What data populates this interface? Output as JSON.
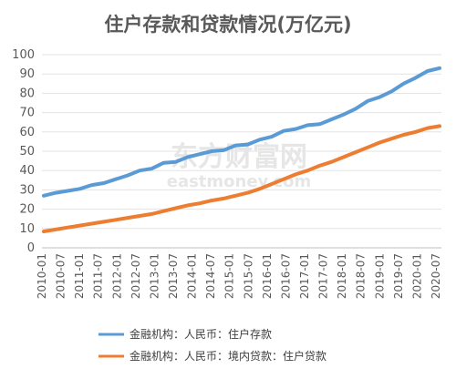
{
  "chart_data": {
    "type": "line",
    "title": "住户存款和贷款情况(万亿元)",
    "ylim": [
      0,
      100
    ],
    "yticks": [
      0,
      10,
      20,
      30,
      40,
      50,
      60,
      70,
      80,
      90,
      100
    ],
    "xticks": [
      "2010-01",
      "2010-07",
      "2011-01",
      "2011-07",
      "2012-01",
      "2012-07",
      "2013-01",
      "2013-07",
      "2014-01",
      "2014-07",
      "2015-01",
      "2015-07",
      "2016-01",
      "2016-07",
      "2017-01",
      "2017-07",
      "2018-01",
      "2018-07",
      "2019-01",
      "2019-07",
      "2020-01",
      "2020-07"
    ],
    "grid": true,
    "legend_position": "bottom",
    "series": [
      {
        "name": "金融机构：人民币：住户存款",
        "color": "#5b9bd5",
        "values": [
          27.0,
          28.5,
          29.5,
          30.5,
          32.5,
          33.5,
          35.5,
          37.5,
          40.0,
          41.0,
          44.0,
          44.5,
          47.0,
          48.5,
          50.0,
          50.5,
          53.0,
          53.5,
          56.0,
          57.5,
          60.5,
          61.5,
          63.5,
          64.0,
          66.5,
          69.0,
          72.0,
          76.0,
          78.0,
          81.0,
          85.0,
          88.0,
          91.5,
          93.0
        ]
      },
      {
        "name": "金融机构：人民币：境内贷款：住户贷款",
        "color": "#ed7d31",
        "values": [
          8.5,
          9.5,
          10.5,
          11.5,
          12.5,
          13.5,
          14.5,
          15.5,
          16.5,
          17.5,
          19.0,
          20.5,
          22.0,
          23.0,
          24.5,
          25.5,
          27.0,
          28.5,
          30.5,
          33.0,
          35.5,
          38.0,
          40.0,
          42.5,
          44.5,
          47.0,
          49.5,
          52.0,
          54.5,
          56.5,
          58.5,
          60.0,
          62.0,
          63.0
        ]
      }
    ]
  },
  "watermark": {
    "line1": "东方财富网",
    "line2": "eastmoney.com"
  }
}
